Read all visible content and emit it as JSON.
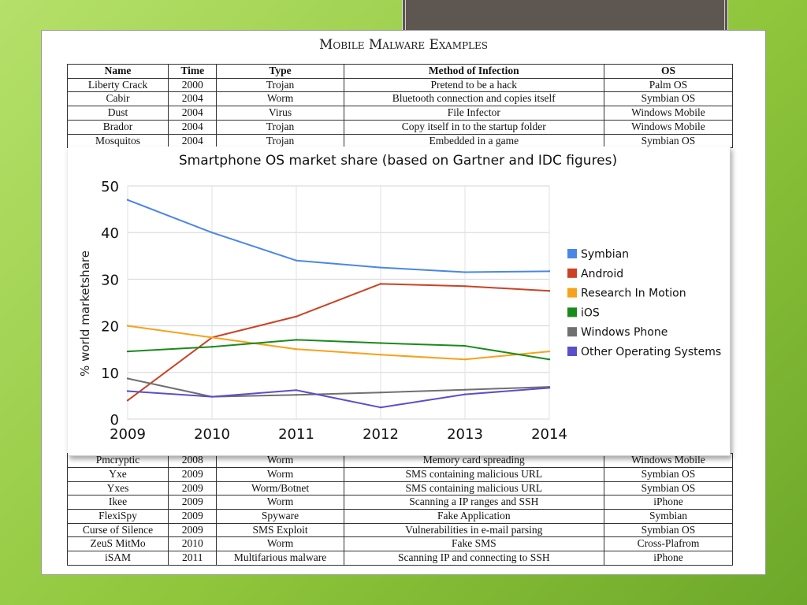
{
  "table": {
    "title": "Mobile Malware Examples",
    "headers": [
      "Name",
      "Time",
      "Type",
      "Method of Infection",
      "OS"
    ],
    "rows_top": [
      [
        "Liberty Crack",
        "2000",
        "Trojan",
        "Pretend to be a hack",
        "Palm OS"
      ],
      [
        "Cabir",
        "2004",
        "Worm",
        "Bluetooth connection and copies itself",
        "Symbian OS"
      ],
      [
        "Dust",
        "2004",
        "Virus",
        "File Infector",
        "Windows Mobile"
      ],
      [
        "Brador",
        "2004",
        "Trojan",
        "Copy itself in to the startup folder",
        "Windows Mobile"
      ],
      [
        "Mosquitos",
        "2004",
        "Trojan",
        "Embedded in a game",
        "Symbian OS"
      ]
    ],
    "rows_bottom": [
      [
        "Pmcryptic",
        "2008",
        "Worm",
        "Memory card spreading",
        "Windows Mobile"
      ],
      [
        "Yxe",
        "2009",
        "Worm",
        "SMS containing malicious URL",
        "Symbian OS"
      ],
      [
        "Yxes",
        "2009",
        "Worm/Botnet",
        "SMS containing malicious URL",
        "Symbian OS"
      ],
      [
        "Ikee",
        "2009",
        "Worm",
        "Scanning a IP ranges and SSH",
        "iPhone"
      ],
      [
        "FlexiSpy",
        "2009",
        "Spyware",
        "Fake Application",
        "Symbian"
      ],
      [
        "Curse of Silence",
        "2009",
        "SMS Exploit",
        "Vulnerabilities in e-mail parsing",
        "Symbian OS"
      ],
      [
        "ZeuS MitMo",
        "2010",
        "Worm",
        "Fake SMS",
        "Cross-Plafrom"
      ],
      [
        "iSAM",
        "2011",
        "Multifarious malware",
        "Scanning IP and connecting to SSH",
        "iPhone"
      ]
    ]
  },
  "chart_data": {
    "type": "line",
    "title": "Smartphone OS market share (based on Gartner and IDC figures)",
    "xlabel": "",
    "ylabel": "% world marketshare",
    "x": [
      2009,
      2010,
      2011,
      2012,
      2013,
      2014
    ],
    "xlim": [
      2009,
      2014
    ],
    "ylim": [
      0,
      50
    ],
    "yticks": [
      0,
      10,
      20,
      30,
      40,
      50
    ],
    "grid": true,
    "legend": "right",
    "series": [
      {
        "name": "Symbian",
        "color": "#4a86e8",
        "values": [
          47,
          40,
          34,
          32.5,
          31.5,
          31.7
        ]
      },
      {
        "name": "Android",
        "color": "#cc4125",
        "values": [
          4,
          17.5,
          22,
          29,
          28.5,
          27.5
        ]
      },
      {
        "name": "Research In Motion",
        "color": "#f6a21a",
        "values": [
          20,
          17.5,
          15,
          13.8,
          12.8,
          14.5
        ]
      },
      {
        "name": "iOS",
        "color": "#1a8a1a",
        "values": [
          14.5,
          15.5,
          17,
          16.3,
          15.7,
          12.8
        ]
      },
      {
        "name": "Windows Phone",
        "color": "#707070",
        "values": [
          8.7,
          4.8,
          5.2,
          5.7,
          6.3,
          6.9
        ]
      },
      {
        "name": "Other Operating Systems",
        "color": "#5b4fc9",
        "values": [
          6,
          4.8,
          6.2,
          2.5,
          5.3,
          6.7
        ]
      }
    ]
  }
}
